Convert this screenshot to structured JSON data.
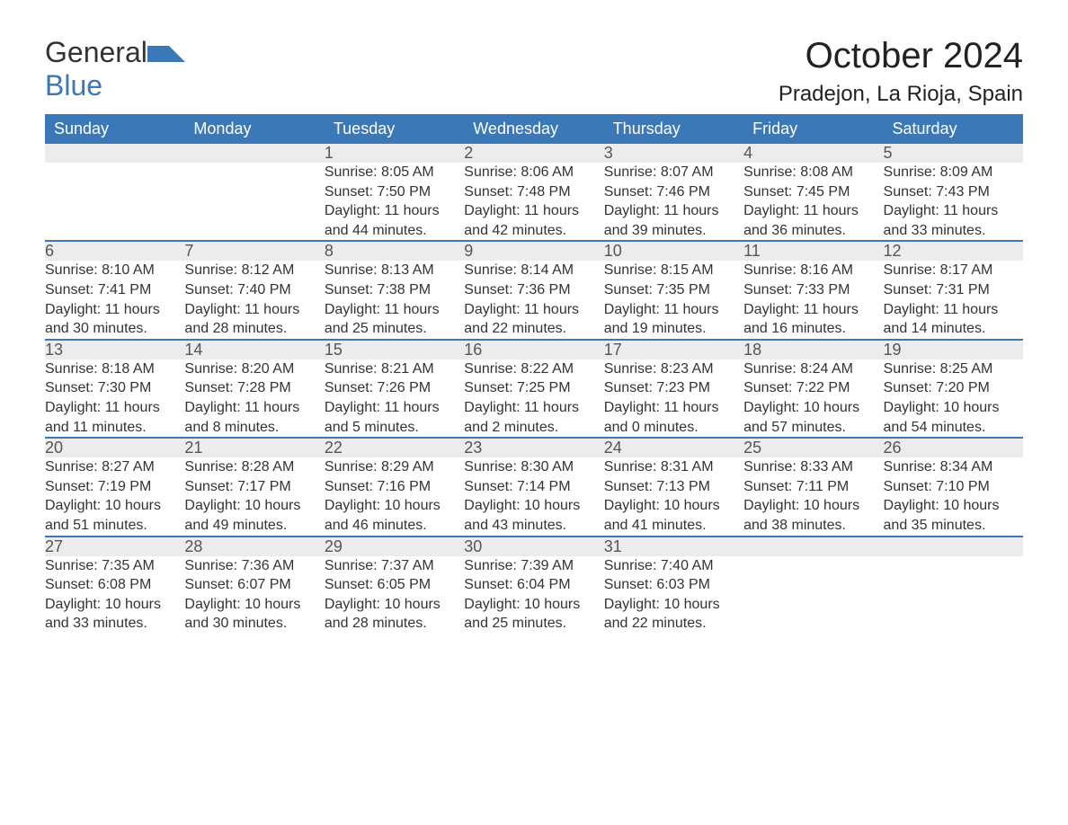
{
  "logo": {
    "text_general": "General",
    "text_blue": "Blue",
    "icon_color": "#3b78b8"
  },
  "title": "October 2024",
  "location": "Pradejon, La Rioja, Spain",
  "colors": {
    "header_bg": "#3b78b8",
    "header_text": "#ffffff",
    "daynum_bg": "#ececec",
    "daynum_text": "#555555",
    "body_text": "#333333",
    "week_border": "#3b78b8",
    "page_bg": "#ffffff"
  },
  "typography": {
    "title_fontsize": 40,
    "location_fontsize": 24,
    "header_fontsize": 18,
    "daynum_fontsize": 18,
    "data_fontsize": 16,
    "font_family": "Arial"
  },
  "day_headers": [
    "Sunday",
    "Monday",
    "Tuesday",
    "Wednesday",
    "Thursday",
    "Friday",
    "Saturday"
  ],
  "weeks": [
    [
      null,
      null,
      {
        "day": "1",
        "sunrise": "Sunrise: 8:05 AM",
        "sunset": "Sunset: 7:50 PM",
        "daylight1": "Daylight: 11 hours",
        "daylight2": "and 44 minutes."
      },
      {
        "day": "2",
        "sunrise": "Sunrise: 8:06 AM",
        "sunset": "Sunset: 7:48 PM",
        "daylight1": "Daylight: 11 hours",
        "daylight2": "and 42 minutes."
      },
      {
        "day": "3",
        "sunrise": "Sunrise: 8:07 AM",
        "sunset": "Sunset: 7:46 PM",
        "daylight1": "Daylight: 11 hours",
        "daylight2": "and 39 minutes."
      },
      {
        "day": "4",
        "sunrise": "Sunrise: 8:08 AM",
        "sunset": "Sunset: 7:45 PM",
        "daylight1": "Daylight: 11 hours",
        "daylight2": "and 36 minutes."
      },
      {
        "day": "5",
        "sunrise": "Sunrise: 8:09 AM",
        "sunset": "Sunset: 7:43 PM",
        "daylight1": "Daylight: 11 hours",
        "daylight2": "and 33 minutes."
      }
    ],
    [
      {
        "day": "6",
        "sunrise": "Sunrise: 8:10 AM",
        "sunset": "Sunset: 7:41 PM",
        "daylight1": "Daylight: 11 hours",
        "daylight2": "and 30 minutes."
      },
      {
        "day": "7",
        "sunrise": "Sunrise: 8:12 AM",
        "sunset": "Sunset: 7:40 PM",
        "daylight1": "Daylight: 11 hours",
        "daylight2": "and 28 minutes."
      },
      {
        "day": "8",
        "sunrise": "Sunrise: 8:13 AM",
        "sunset": "Sunset: 7:38 PM",
        "daylight1": "Daylight: 11 hours",
        "daylight2": "and 25 minutes."
      },
      {
        "day": "9",
        "sunrise": "Sunrise: 8:14 AM",
        "sunset": "Sunset: 7:36 PM",
        "daylight1": "Daylight: 11 hours",
        "daylight2": "and 22 minutes."
      },
      {
        "day": "10",
        "sunrise": "Sunrise: 8:15 AM",
        "sunset": "Sunset: 7:35 PM",
        "daylight1": "Daylight: 11 hours",
        "daylight2": "and 19 minutes."
      },
      {
        "day": "11",
        "sunrise": "Sunrise: 8:16 AM",
        "sunset": "Sunset: 7:33 PM",
        "daylight1": "Daylight: 11 hours",
        "daylight2": "and 16 minutes."
      },
      {
        "day": "12",
        "sunrise": "Sunrise: 8:17 AM",
        "sunset": "Sunset: 7:31 PM",
        "daylight1": "Daylight: 11 hours",
        "daylight2": "and 14 minutes."
      }
    ],
    [
      {
        "day": "13",
        "sunrise": "Sunrise: 8:18 AM",
        "sunset": "Sunset: 7:30 PM",
        "daylight1": "Daylight: 11 hours",
        "daylight2": "and 11 minutes."
      },
      {
        "day": "14",
        "sunrise": "Sunrise: 8:20 AM",
        "sunset": "Sunset: 7:28 PM",
        "daylight1": "Daylight: 11 hours",
        "daylight2": "and 8 minutes."
      },
      {
        "day": "15",
        "sunrise": "Sunrise: 8:21 AM",
        "sunset": "Sunset: 7:26 PM",
        "daylight1": "Daylight: 11 hours",
        "daylight2": "and 5 minutes."
      },
      {
        "day": "16",
        "sunrise": "Sunrise: 8:22 AM",
        "sunset": "Sunset: 7:25 PM",
        "daylight1": "Daylight: 11 hours",
        "daylight2": "and 2 minutes."
      },
      {
        "day": "17",
        "sunrise": "Sunrise: 8:23 AM",
        "sunset": "Sunset: 7:23 PM",
        "daylight1": "Daylight: 11 hours",
        "daylight2": "and 0 minutes."
      },
      {
        "day": "18",
        "sunrise": "Sunrise: 8:24 AM",
        "sunset": "Sunset: 7:22 PM",
        "daylight1": "Daylight: 10 hours",
        "daylight2": "and 57 minutes."
      },
      {
        "day": "19",
        "sunrise": "Sunrise: 8:25 AM",
        "sunset": "Sunset: 7:20 PM",
        "daylight1": "Daylight: 10 hours",
        "daylight2": "and 54 minutes."
      }
    ],
    [
      {
        "day": "20",
        "sunrise": "Sunrise: 8:27 AM",
        "sunset": "Sunset: 7:19 PM",
        "daylight1": "Daylight: 10 hours",
        "daylight2": "and 51 minutes."
      },
      {
        "day": "21",
        "sunrise": "Sunrise: 8:28 AM",
        "sunset": "Sunset: 7:17 PM",
        "daylight1": "Daylight: 10 hours",
        "daylight2": "and 49 minutes."
      },
      {
        "day": "22",
        "sunrise": "Sunrise: 8:29 AM",
        "sunset": "Sunset: 7:16 PM",
        "daylight1": "Daylight: 10 hours",
        "daylight2": "and 46 minutes."
      },
      {
        "day": "23",
        "sunrise": "Sunrise: 8:30 AM",
        "sunset": "Sunset: 7:14 PM",
        "daylight1": "Daylight: 10 hours",
        "daylight2": "and 43 minutes."
      },
      {
        "day": "24",
        "sunrise": "Sunrise: 8:31 AM",
        "sunset": "Sunset: 7:13 PM",
        "daylight1": "Daylight: 10 hours",
        "daylight2": "and 41 minutes."
      },
      {
        "day": "25",
        "sunrise": "Sunrise: 8:33 AM",
        "sunset": "Sunset: 7:11 PM",
        "daylight1": "Daylight: 10 hours",
        "daylight2": "and 38 minutes."
      },
      {
        "day": "26",
        "sunrise": "Sunrise: 8:34 AM",
        "sunset": "Sunset: 7:10 PM",
        "daylight1": "Daylight: 10 hours",
        "daylight2": "and 35 minutes."
      }
    ],
    [
      {
        "day": "27",
        "sunrise": "Sunrise: 7:35 AM",
        "sunset": "Sunset: 6:08 PM",
        "daylight1": "Daylight: 10 hours",
        "daylight2": "and 33 minutes."
      },
      {
        "day": "28",
        "sunrise": "Sunrise: 7:36 AM",
        "sunset": "Sunset: 6:07 PM",
        "daylight1": "Daylight: 10 hours",
        "daylight2": "and 30 minutes."
      },
      {
        "day": "29",
        "sunrise": "Sunrise: 7:37 AM",
        "sunset": "Sunset: 6:05 PM",
        "daylight1": "Daylight: 10 hours",
        "daylight2": "and 28 minutes."
      },
      {
        "day": "30",
        "sunrise": "Sunrise: 7:39 AM",
        "sunset": "Sunset: 6:04 PM",
        "daylight1": "Daylight: 10 hours",
        "daylight2": "and 25 minutes."
      },
      {
        "day": "31",
        "sunrise": "Sunrise: 7:40 AM",
        "sunset": "Sunset: 6:03 PM",
        "daylight1": "Daylight: 10 hours",
        "daylight2": "and 22 minutes."
      },
      null,
      null
    ]
  ]
}
